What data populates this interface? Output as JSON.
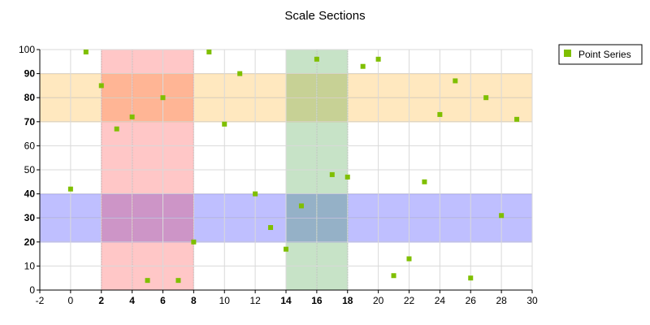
{
  "chart_data": {
    "type": "scatter",
    "title": "Scale Sections",
    "xlabel": "",
    "ylabel": "",
    "xlim": [
      -2,
      30
    ],
    "ylim": [
      0,
      100
    ],
    "x_ticks": [
      -2,
      0,
      2,
      4,
      6,
      8,
      10,
      12,
      14,
      16,
      18,
      20,
      22,
      24,
      26,
      28,
      30
    ],
    "y_ticks": [
      0,
      10,
      20,
      30,
      40,
      50,
      60,
      70,
      80,
      90,
      100
    ],
    "grid": true,
    "legend": {
      "position": "top-right",
      "entries": [
        "Point Series"
      ]
    },
    "series": [
      {
        "name": "Point Series",
        "color": "#7fbf00",
        "points": [
          [
            0,
            42
          ],
          [
            1,
            99
          ],
          [
            2,
            85
          ],
          [
            3,
            67
          ],
          [
            4,
            72
          ],
          [
            5,
            4
          ],
          [
            6,
            80
          ],
          [
            7,
            4
          ],
          [
            8,
            20
          ],
          [
            9,
            99
          ],
          [
            10,
            69
          ],
          [
            11,
            90
          ],
          [
            12,
            40
          ],
          [
            13,
            26
          ],
          [
            14,
            17
          ],
          [
            15,
            35
          ],
          [
            16,
            96
          ],
          [
            17,
            48
          ],
          [
            18,
            47
          ],
          [
            19,
            93
          ],
          [
            20,
            96
          ],
          [
            21,
            6
          ],
          [
            22,
            13
          ],
          [
            23,
            45
          ],
          [
            24,
            73
          ],
          [
            25,
            87
          ],
          [
            26,
            5
          ],
          [
            27,
            80
          ],
          [
            28,
            31
          ],
          [
            29,
            71
          ]
        ]
      }
    ],
    "scale_sections": {
      "x": [
        {
          "from": 2,
          "to": 8,
          "fill": "#ff0000",
          "fill_opacity": 0.22,
          "line_color": "#cc0000",
          "label_color": "#a00000",
          "tick_values": [
            2,
            4,
            6,
            8
          ]
        },
        {
          "from": 14,
          "to": 18,
          "fill": "#008000",
          "fill_opacity": 0.22,
          "line_color": "#007000",
          "label_color": "#008000",
          "tick_values": [
            14,
            16,
            18
          ]
        }
      ],
      "y": [
        {
          "from": 70,
          "to": 90,
          "fill": "#ffa500",
          "fill_opacity": 0.25,
          "line_color": "#f0b040",
          "label_color": "#e69500",
          "tick_values": [
            70,
            80,
            90
          ]
        },
        {
          "from": 20,
          "to": 40,
          "fill": "#0000ff",
          "fill_opacity": 0.25,
          "line_color": "#3333ff",
          "label_color": "#0000b0",
          "tick_values": [
            20,
            30,
            40
          ]
        }
      ]
    }
  }
}
